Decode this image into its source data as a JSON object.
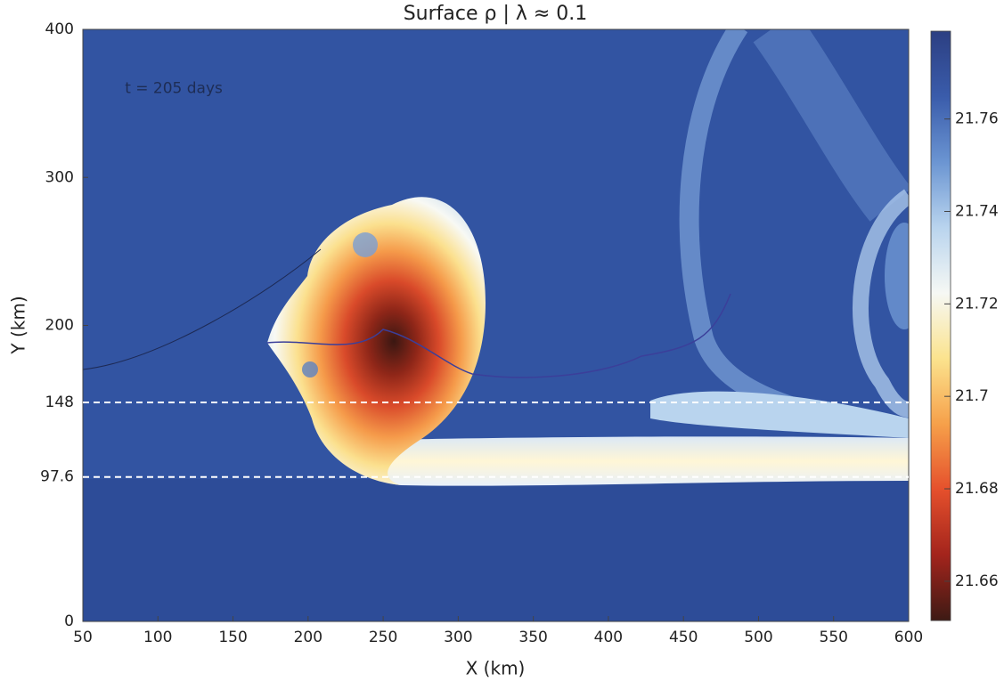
{
  "chart_data": {
    "type": "contour",
    "title": "Surface ρ | λ ≈ 0.1",
    "x_label": "X (km)",
    "y_label": "Y (km)",
    "annotation": {
      "text": "t = 205 days",
      "x": 78,
      "y": 360
    },
    "xlim": [
      50,
      600
    ],
    "ylim": [
      0,
      400
    ],
    "xticks": [
      50,
      100,
      150,
      200,
      250,
      300,
      350,
      400,
      450,
      500,
      550,
      600
    ],
    "yticks": [
      0,
      97.6,
      148,
      200,
      300,
      400
    ],
    "hlines": [
      148,
      97.6
    ],
    "hline_color": "#ffffff",
    "colorbar": {
      "clim": [
        21.6515,
        21.779
      ],
      "ticks": [
        21.66,
        21.68,
        21.7,
        21.72,
        21.74,
        21.76
      ],
      "colormap": [
        "#3d1a14",
        "#a3241c",
        "#e5502c",
        "#f6a04a",
        "#fbe38e",
        "#f6f8f4",
        "#b9d4ee",
        "#6b95d2",
        "#3a5cab",
        "#2c3f82"
      ]
    },
    "background_color": "#3254a2"
  }
}
